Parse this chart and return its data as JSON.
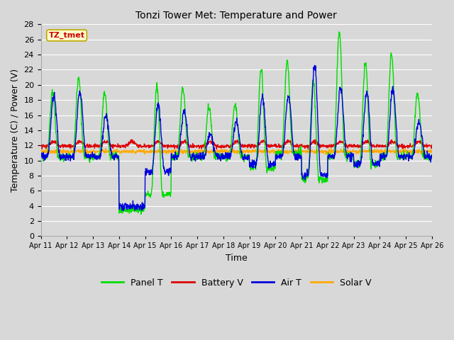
{
  "title": "Tonzi Tower Met: Temperature and Power",
  "xlabel": "Time",
  "ylabel": "Temperature (C) / Power (V)",
  "ylim": [
    0,
    28
  ],
  "yticks": [
    0,
    2,
    4,
    6,
    8,
    10,
    12,
    14,
    16,
    18,
    20,
    22,
    24,
    26,
    28
  ],
  "x_labels": [
    "Apr 11",
    "Apr 12",
    "Apr 13",
    "Apr 14",
    "Apr 15",
    "Apr 16",
    "Apr 17",
    "Apr 18",
    "Apr 19",
    "Apr 20",
    "Apr 21",
    "Apr 22",
    "Apr 23",
    "Apr 24",
    "Apr 25",
    "Apr 26"
  ],
  "fig_bg": "#d8d8d8",
  "plot_bg": "#d8d8d8",
  "grid_color": "#ffffff",
  "colors": {
    "panel_t": "#00dd00",
    "battery_v": "#dd0000",
    "air_t": "#0000dd",
    "solar_v": "#ffaa00"
  },
  "legend_labels": [
    "Panel T",
    "Battery V",
    "Air T",
    "Solar V"
  ],
  "annotation_text": "TZ_tmet",
  "annotation_color": "#cc0000",
  "annotation_bg": "#ffffcc",
  "annotation_border": "#bbaa00"
}
